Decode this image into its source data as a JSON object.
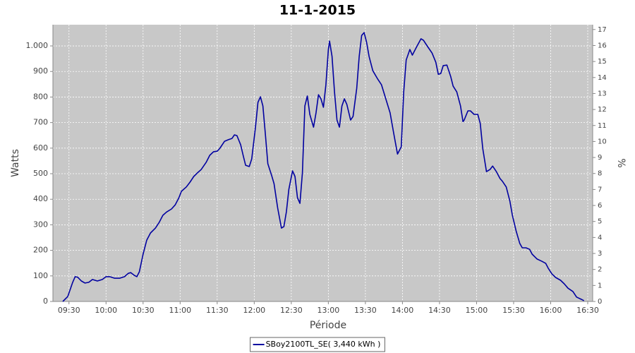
{
  "chart_data": {
    "type": "line",
    "title": "11-1-2015",
    "x_label": "Période",
    "y_label": "Watts",
    "y2_label": "%",
    "x": [
      "09:25",
      "09:29",
      "09:33",
      "09:35",
      "09:37",
      "09:40",
      "09:43",
      "09:46",
      "09:49",
      "09:53",
      "09:57",
      "10:00",
      "10:03",
      "10:07",
      "10:11",
      "10:15",
      "10:18",
      "10:20",
      "10:23",
      "10:25",
      "10:27",
      "10:30",
      "10:33",
      "10:36",
      "10:40",
      "10:43",
      "10:46",
      "10:49",
      "10:53",
      "10:56",
      "10:59",
      "11:01",
      "11:05",
      "11:08",
      "11:11",
      "11:14",
      "11:17",
      "11:21",
      "11:24",
      "11:27",
      "11:30",
      "11:32",
      "11:36",
      "11:39",
      "11:42",
      "11:44",
      "11:46",
      "11:49",
      "11:51",
      "11:53",
      "11:56",
      "11:58",
      "12:01",
      "12:03",
      "12:05",
      "12:07",
      "12:09",
      "12:11",
      "12:14",
      "12:16",
      "12:19",
      "12:22",
      "12:24",
      "12:26",
      "12:28",
      "12:31",
      "12:33",
      "12:35",
      "12:37",
      "12:39",
      "12:41",
      "12:43",
      "12:45",
      "12:48",
      "12:50",
      "12:52",
      "12:54",
      "12:56",
      "12:58",
      "13:00",
      "13:01",
      "13:03",
      "13:05",
      "13:07",
      "13:09",
      "13:11",
      "13:13",
      "13:15",
      "13:18",
      "13:20",
      "13:23",
      "13:25",
      "13:27",
      "13:29",
      "13:31",
      "13:33",
      "13:36",
      "13:40",
      "13:43",
      "13:46",
      "13:50",
      "13:53",
      "13:56",
      "13:59",
      "14:01",
      "14:03",
      "14:06",
      "14:08",
      "14:11",
      "14:15",
      "14:17",
      "14:20",
      "14:24",
      "14:27",
      "14:29",
      "14:31",
      "14:33",
      "14:36",
      "14:39",
      "14:41",
      "14:44",
      "14:47",
      "14:49",
      "14:50",
      "14:53",
      "14:55",
      "14:58",
      "15:01",
      "15:03",
      "15:05",
      "15:08",
      "15:11",
      "15:13",
      "15:16",
      "15:19",
      "15:21",
      "15:24",
      "15:27",
      "15:29",
      "15:32",
      "15:35",
      "15:37",
      "15:40",
      "15:43",
      "15:45",
      "15:49",
      "15:53",
      "15:56",
      "15:58",
      "16:01",
      "16:04",
      "16:08",
      "16:11",
      "16:14",
      "16:18",
      "16:21",
      "16:25",
      "16:27"
    ],
    "series": [
      {
        "name": "SBoy2100TL_SE( 3,440 kWh )",
        "color": "#0000a0",
        "values": [
          0,
          19,
          75,
          97,
          95,
          80,
          72,
          75,
          86,
          80,
          86,
          97,
          97,
          91,
          91,
          97,
          110,
          113,
          102,
          97,
          116,
          185,
          240,
          268,
          287,
          309,
          337,
          350,
          362,
          378,
          406,
          431,
          448,
          467,
          489,
          503,
          516,
          544,
          572,
          586,
          588,
          598,
          627,
          633,
          638,
          652,
          649,
          613,
          572,
          533,
          528,
          558,
          682,
          779,
          801,
          765,
          655,
          539,
          494,
          461,
          365,
          287,
          293,
          351,
          439,
          511,
          489,
          406,
          384,
          503,
          765,
          804,
          732,
          682,
          738,
          809,
          793,
          760,
          848,
          986,
          1019,
          959,
          820,
          710,
          682,
          765,
          793,
          771,
          710,
          724,
          834,
          959,
          1041,
          1052,
          1014,
          959,
          903,
          870,
          848,
          801,
          738,
          655,
          577,
          605,
          820,
          945,
          986,
          964,
          992,
          1028,
          1022,
          1000,
          972,
          936,
          889,
          892,
          923,
          925,
          881,
          843,
          820,
          765,
          704,
          710,
          746,
          746,
          732,
          732,
          696,
          599,
          508,
          517,
          530,
          508,
          481,
          470,
          448,
          392,
          337,
          276,
          227,
          210,
          210,
          204,
          185,
          166,
          157,
          149,
          130,
          108,
          94,
          83,
          69,
          52,
          39,
          17,
          8,
          3
        ]
      }
    ],
    "xlim": [
      "09:17",
      "16:34"
    ],
    "xticks": [
      "09:30",
      "10:00",
      "10:30",
      "11:00",
      "11:30",
      "12:00",
      "12:30",
      "13:00",
      "13:30",
      "14:00",
      "14:30",
      "15:00",
      "15:30",
      "16:00",
      "16:30"
    ],
    "ylim": [
      0,
      1083
    ],
    "yticks": [
      0,
      100,
      200,
      300,
      400,
      500,
      600,
      700,
      800,
      900,
      {
        "value": 1000,
        "label": "1.000"
      }
    ],
    "y2lim": [
      0,
      17.3
    ],
    "y2ticks": [
      0,
      1,
      2,
      3,
      4,
      5,
      6,
      7,
      8,
      9,
      10,
      11,
      12,
      13,
      14,
      15,
      16,
      17
    ],
    "grid": true,
    "legend": "bottom",
    "plot_background": "#c8c8c8"
  }
}
